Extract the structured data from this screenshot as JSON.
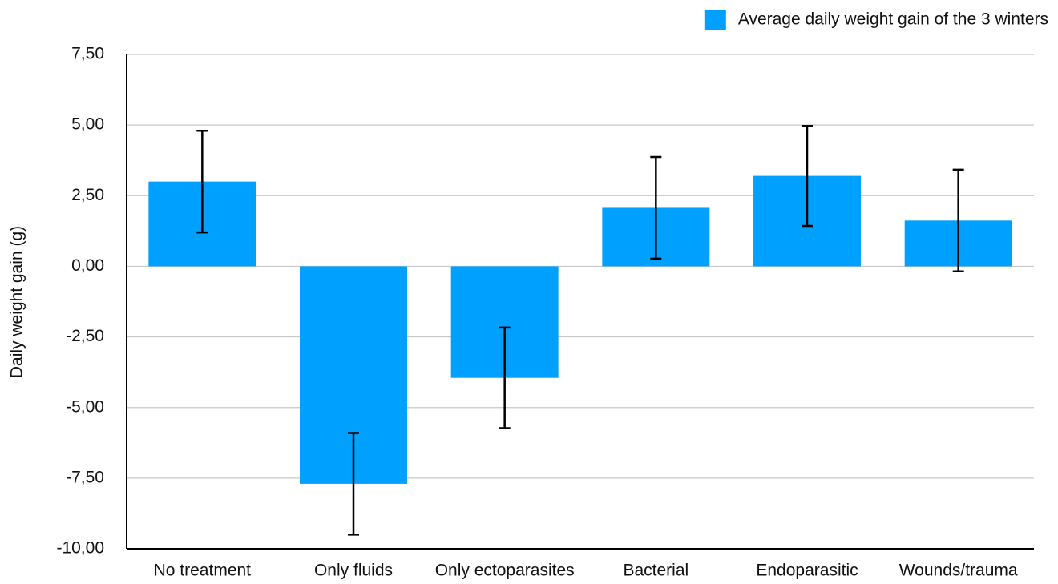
{
  "chart_data": {
    "type": "bar",
    "y_label": "Daily weight gain (g)",
    "categories": [
      "No treatment",
      "Only fluids",
      "Only ectoparasites",
      "Bacterial",
      "Endoparasitic",
      "Wounds/trauma"
    ],
    "series": [
      {
        "name": "Average daily weight gain of the 3 winters",
        "color": "#00a0ff",
        "values": [
          3.0,
          -7.7,
          -3.95,
          2.07,
          3.2,
          1.62
        ],
        "errors": [
          1.8,
          1.8,
          1.78,
          1.8,
          1.77,
          1.8
        ]
      }
    ],
    "ylim": [
      -10,
      7.5
    ],
    "yticks": [
      {
        "value": -10,
        "label": "-10,00"
      },
      {
        "value": -7.5,
        "label": "-7,50"
      },
      {
        "value": -5,
        "label": "-5,00"
      },
      {
        "value": -2.5,
        "label": "-2,50"
      },
      {
        "value": 0,
        "label": "0,00"
      },
      {
        "value": 2.5,
        "label": "2,50"
      },
      {
        "value": 5,
        "label": "5,00"
      },
      {
        "value": 7.5,
        "label": "7,50"
      }
    ],
    "grid": true,
    "legend": "top-right"
  }
}
